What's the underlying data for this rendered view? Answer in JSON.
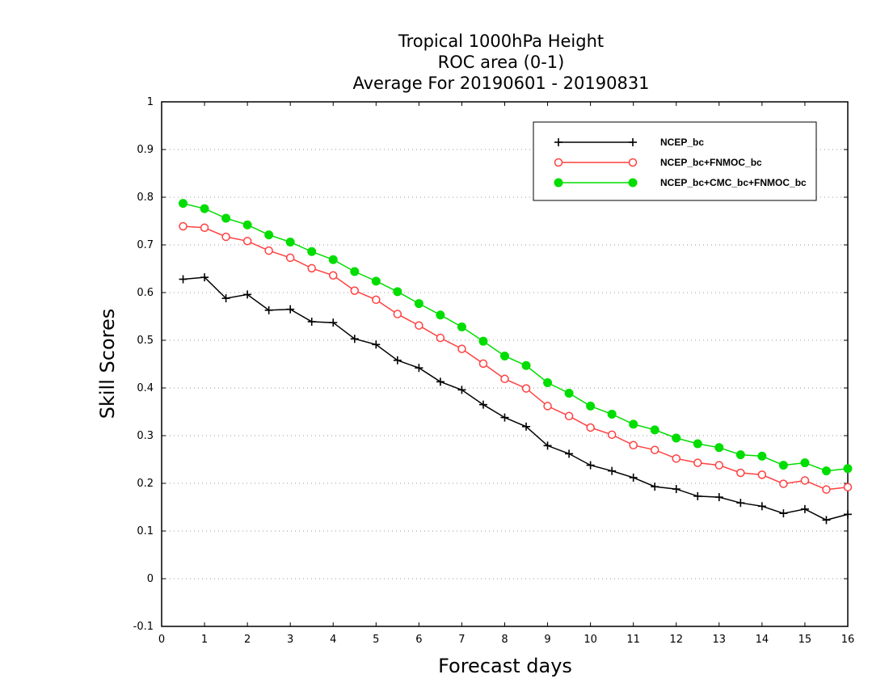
{
  "chart_data": {
    "type": "line",
    "title_lines": [
      "Tropical 1000hPa Height",
      "ROC area (0-1)",
      "Average For 20190601 - 20190831"
    ],
    "xlabel": "Forecast days",
    "ylabel": "Skill Scores",
    "xlim": [
      0,
      16
    ],
    "ylim": [
      -0.1,
      1
    ],
    "x_ticks": [
      "0",
      "1",
      "2",
      "3",
      "4",
      "5",
      "6",
      "7",
      "8",
      "9",
      "10",
      "11",
      "12",
      "13",
      "14",
      "15",
      "16"
    ],
    "y_ticks": [
      "-0.1",
      "0",
      "0.1",
      "0.2",
      "0.3",
      "0.4",
      "0.5",
      "0.6",
      "0.7",
      "0.8",
      "0.9",
      "1"
    ],
    "grid": "horizontal dotted",
    "legend_position": "top-right",
    "x": [
      0.5,
      1,
      1.5,
      2,
      2.5,
      3,
      3.5,
      4,
      4.5,
      5,
      5.5,
      6,
      6.5,
      7,
      7.5,
      8,
      8.5,
      9,
      9.5,
      10,
      10.5,
      11,
      11.5,
      12,
      12.5,
      13,
      13.5,
      14,
      14.5,
      15,
      15.5,
      16
    ],
    "series": [
      {
        "name": "NCEP_bc",
        "color": "#000000",
        "marker": "plus",
        "values": [
          0.628,
          0.632,
          0.588,
          0.596,
          0.563,
          0.565,
          0.539,
          0.537,
          0.503,
          0.491,
          0.458,
          0.442,
          0.413,
          0.396,
          0.365,
          0.338,
          0.319,
          0.279,
          0.262,
          0.238,
          0.226,
          0.212,
          0.193,
          0.188,
          0.173,
          0.171,
          0.159,
          0.152,
          0.137,
          0.146,
          0.123,
          0.135
        ]
      },
      {
        "name": "NCEP_bc+FNMOC_bc",
        "color": "#ff4040",
        "marker": "open-circle",
        "values": [
          0.739,
          0.736,
          0.717,
          0.708,
          0.688,
          0.673,
          0.651,
          0.636,
          0.604,
          0.585,
          0.555,
          0.531,
          0.505,
          0.482,
          0.451,
          0.419,
          0.399,
          0.362,
          0.341,
          0.317,
          0.302,
          0.28,
          0.27,
          0.252,
          0.243,
          0.238,
          0.222,
          0.218,
          0.199,
          0.206,
          0.187,
          0.192
        ]
      },
      {
        "name": "NCEP_bc+CMC_bc+FNMOC_bc",
        "color": "#00dd00",
        "marker": "filled-circle",
        "values": [
          0.787,
          0.776,
          0.756,
          0.742,
          0.721,
          0.706,
          0.686,
          0.669,
          0.644,
          0.624,
          0.602,
          0.577,
          0.553,
          0.528,
          0.498,
          0.467,
          0.447,
          0.411,
          0.389,
          0.362,
          0.345,
          0.324,
          0.312,
          0.295,
          0.283,
          0.275,
          0.26,
          0.257,
          0.238,
          0.243,
          0.226,
          0.231
        ]
      }
    ]
  }
}
